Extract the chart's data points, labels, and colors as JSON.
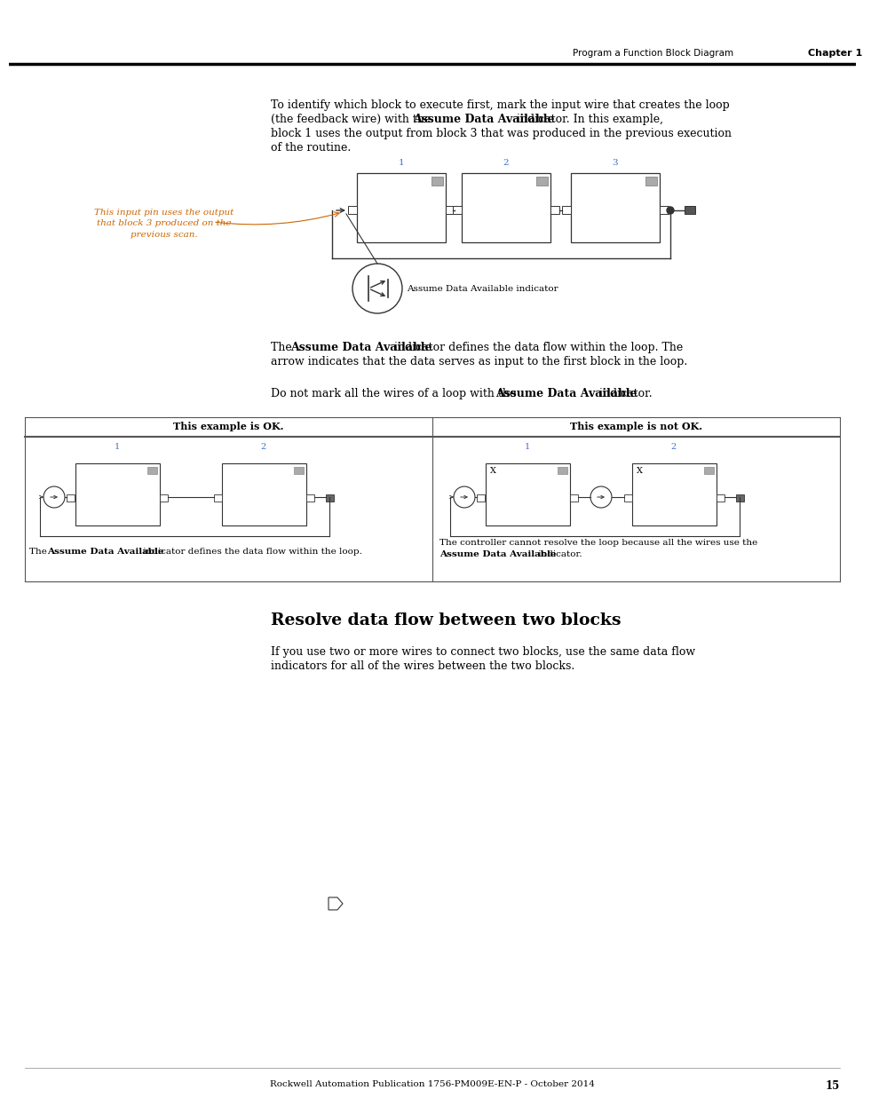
{
  "page_title_left": "Program a Function Block Diagram",
  "page_title_right": "Chapter 1",
  "page_number": "15",
  "footer_text": "Rockwell Automation Publication 1756-PM009E-EN-P - October 2014",
  "section_title": "Resolve data flow between two blocks",
  "ok_label": "This example is OK.",
  "notok_label": "This example is not OK.",
  "callout_text": "This input pin uses the output\nthat block 3 produced on the\nprevious scan.",
  "ada_label": "Assume Data Available indicator",
  "bg_color": "#ffffff",
  "text_color": "#000000",
  "callout_color": "#cc6600",
  "number_color": "#4472c4",
  "block_fill": "#ffffff",
  "block_edge": "#333333",
  "sgb_fill": "#aaaaaa",
  "wire_color": "#333333",
  "header_line_color": "#000000",
  "table_line_color": "#555555"
}
